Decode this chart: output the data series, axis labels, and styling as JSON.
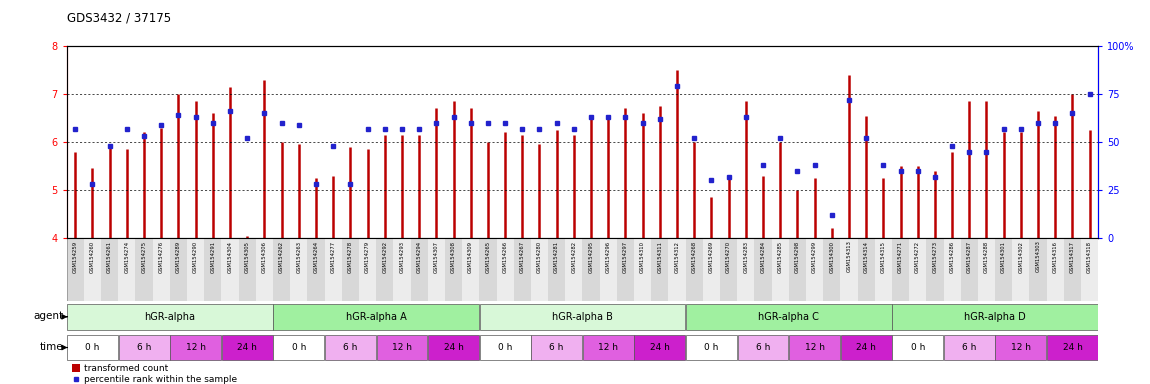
{
  "title": "GDS3432 / 37175",
  "samples": [
    "GSM154259",
    "GSM154260",
    "GSM154261",
    "GSM154274",
    "GSM154275",
    "GSM154276",
    "GSM154289",
    "GSM154290",
    "GSM154291",
    "GSM154304",
    "GSM154305",
    "GSM154306",
    "GSM154262",
    "GSM154263",
    "GSM154264",
    "GSM154277",
    "GSM154278",
    "GSM154279",
    "GSM154292",
    "GSM154293",
    "GSM154294",
    "GSM154307",
    "GSM154308",
    "GSM154309",
    "GSM154265",
    "GSM154266",
    "GSM154267",
    "GSM154280",
    "GSM154281",
    "GSM154282",
    "GSM154295",
    "GSM154296",
    "GSM154297",
    "GSM154310",
    "GSM154311",
    "GSM154312",
    "GSM154268",
    "GSM154269",
    "GSM154270",
    "GSM154283",
    "GSM154284",
    "GSM154285",
    "GSM154298",
    "GSM154299",
    "GSM154300",
    "GSM154313",
    "GSM154314",
    "GSM154315",
    "GSM154271",
    "GSM154272",
    "GSM154273",
    "GSM154286",
    "GSM154287",
    "GSM154288",
    "GSM154301",
    "GSM154302",
    "GSM154303",
    "GSM154316",
    "GSM154317",
    "GSM154318"
  ],
  "bar_values": [
    5.8,
    5.45,
    5.95,
    5.85,
    6.2,
    6.3,
    7.0,
    6.85,
    6.6,
    7.15,
    4.05,
    7.3,
    6.0,
    5.95,
    5.25,
    5.3,
    5.9,
    5.85,
    6.15,
    6.15,
    6.15,
    6.7,
    6.85,
    6.7,
    6.0,
    6.2,
    6.15,
    5.95,
    6.25,
    6.15,
    6.5,
    6.5,
    6.7,
    6.6,
    6.75,
    7.5,
    6.0,
    4.85,
    5.25,
    6.85,
    5.3,
    6.0,
    5.0,
    5.25,
    4.2,
    7.4,
    6.55,
    5.25,
    5.5,
    5.5,
    5.4,
    5.8,
    6.85,
    6.85,
    6.2,
    6.2,
    6.65,
    6.55,
    7.0,
    6.25
  ],
  "dot_values": [
    57,
    28,
    48,
    57,
    53,
    59,
    64,
    63,
    60,
    66,
    52,
    65,
    60,
    59,
    28,
    48,
    28,
    57,
    57,
    57,
    57,
    60,
    63,
    60,
    60,
    60,
    57,
    57,
    60,
    57,
    63,
    63,
    63,
    60,
    62,
    79,
    52,
    30,
    32,
    63,
    38,
    52,
    35,
    38,
    12,
    72,
    52,
    38,
    35,
    35,
    32,
    48,
    45,
    45,
    57,
    57,
    60,
    60,
    65,
    75
  ],
  "agents": [
    "hGR-alpha",
    "hGR-alpha A",
    "hGR-alpha B",
    "hGR-alpha C",
    "hGR-alpha D"
  ],
  "agent_colors": [
    "#d8f8d8",
    "#a0f0a0",
    "#d8f8d8",
    "#a0f0a0",
    "#a0f0a0"
  ],
  "time_labels": [
    "0 h",
    "6 h",
    "12 h",
    "24 h"
  ],
  "time_colors_bg": [
    "#ffffff",
    "#f0b0f0",
    "#e060e0",
    "#cc20cc"
  ],
  "time_text_colors": [
    "#000000",
    "#000000",
    "#000000",
    "#ffffff"
  ],
  "ylim_left": [
    4,
    8
  ],
  "ylim_right": [
    0,
    100
  ],
  "yticks_left": [
    4,
    5,
    6,
    7,
    8
  ],
  "yticks_right": [
    0,
    25,
    50,
    75,
    100
  ],
  "bar_color": "#bb0000",
  "dot_color": "#2222cc",
  "background_color": "#ffffff"
}
